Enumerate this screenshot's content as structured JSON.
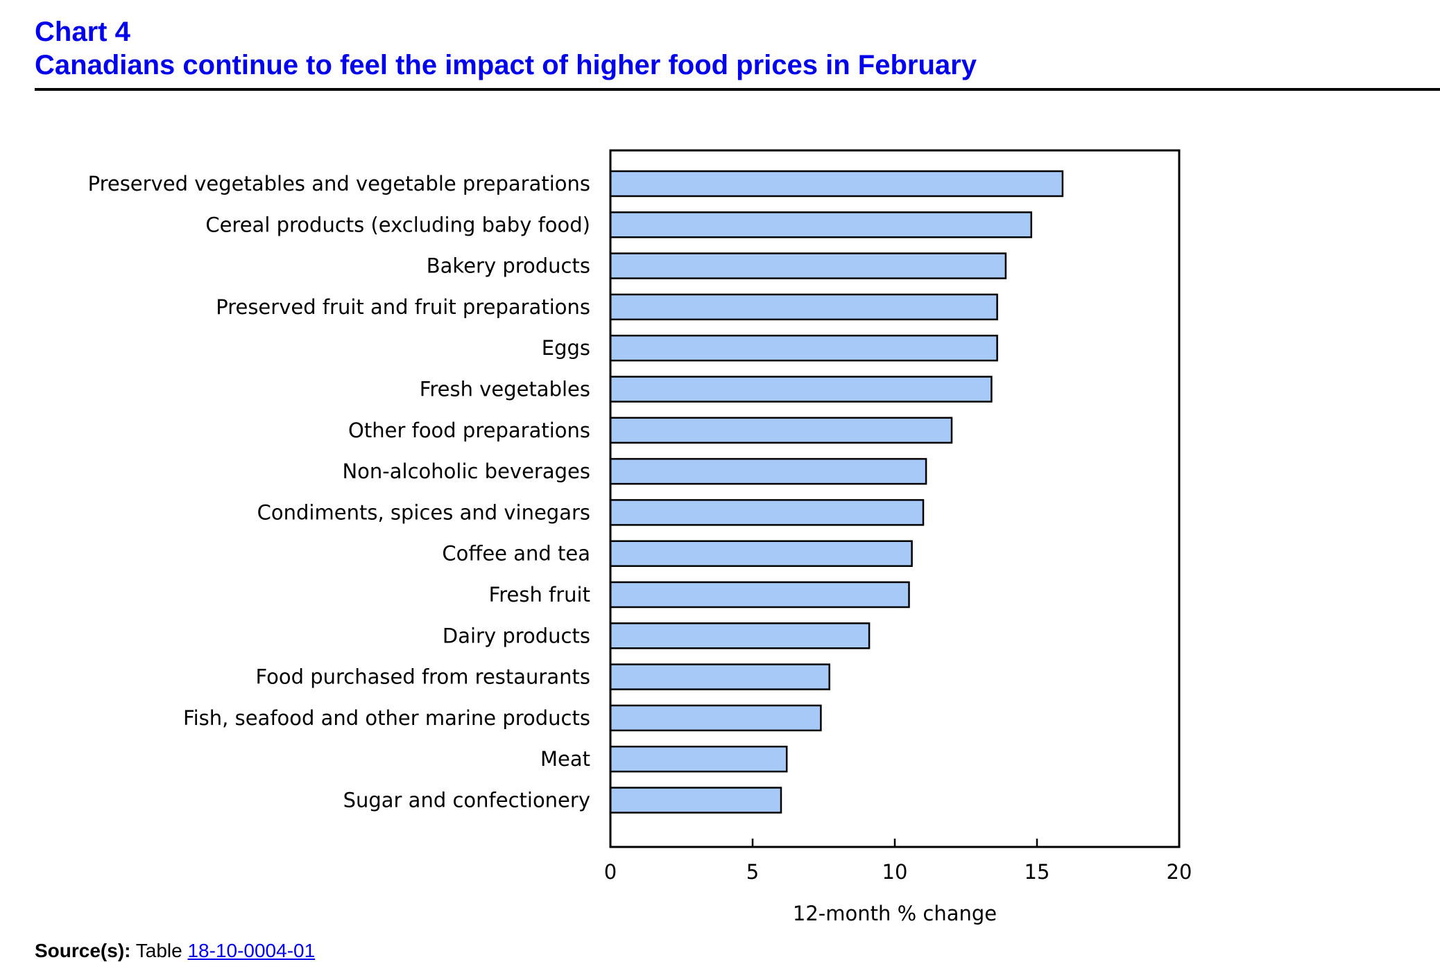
{
  "header": {
    "chart_number": "Chart 4",
    "title": "Canadians continue to feel the impact of higher food prices in February"
  },
  "source": {
    "label": "Source(s):",
    "text": "Table",
    "link": "18-10-0004-01"
  },
  "colors": {
    "title": "#0000ee",
    "bar_fill": "#a6c9f7",
    "bar_stroke": "#000000"
  },
  "chart_data": {
    "type": "bar",
    "orientation": "horizontal",
    "title": "Canadians continue to feel the impact of higher food prices in February",
    "xlabel": "12-month % change",
    "ylabel": "",
    "xlim": [
      0,
      20
    ],
    "xticks": [
      0,
      5,
      10,
      15,
      20
    ],
    "grid": false,
    "categories": [
      "Preserved vegetables and vegetable preparations",
      "Cereal products (excluding baby food)",
      "Bakery products",
      "Preserved fruit and fruit preparations",
      "Eggs",
      "Fresh vegetables",
      "Other food preparations",
      "Non-alcoholic beverages",
      "Condiments, spices and vinegars",
      "Coffee and tea",
      "Fresh fruit",
      "Dairy products",
      "Food purchased from restaurants",
      "Fish, seafood and other marine products",
      "Meat",
      "Sugar and confectionery"
    ],
    "values": [
      15.9,
      14.8,
      13.9,
      13.6,
      13.6,
      13.4,
      12.0,
      11.1,
      11.0,
      10.6,
      10.5,
      9.1,
      7.7,
      7.4,
      6.2,
      6.0
    ]
  }
}
